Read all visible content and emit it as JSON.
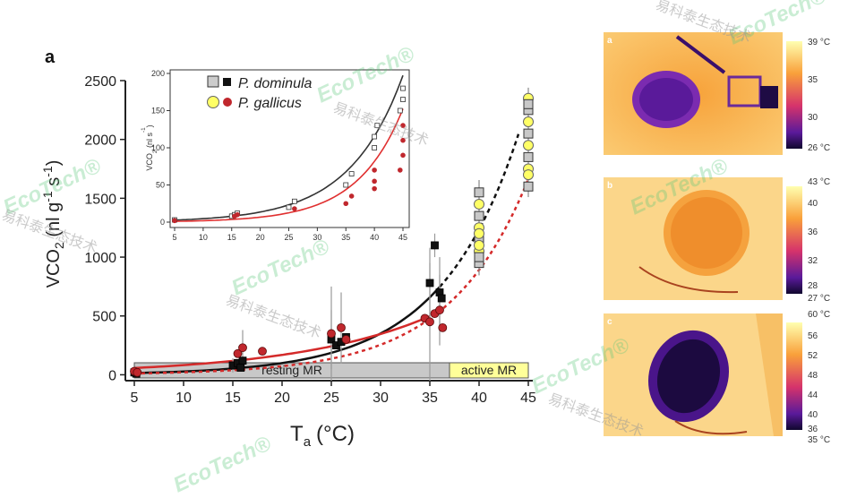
{
  "panel_letter": "a",
  "chart_data": {
    "type": "scatter",
    "xlabel": "T",
    "xlabel_sub": "a",
    "xlabel_unit": "(°C)",
    "ylabel_parts": [
      "VCO",
      "2",
      " (nl g",
      "-1",
      " s",
      "-1",
      ")"
    ],
    "xlim": [
      5,
      45
    ],
    "ylim": [
      -50,
      2500
    ],
    "x_ticks": [
      5,
      10,
      15,
      20,
      25,
      30,
      35,
      40,
      45
    ],
    "y_ticks": [
      0,
      500,
      1000,
      1500,
      2000,
      2500
    ],
    "regions": [
      {
        "label": "resting MR",
        "x": [
          5,
          37
        ],
        "color": "#c8c8c8"
      },
      {
        "label": "active MR",
        "x": [
          37,
          45
        ],
        "color": "#ffff99"
      }
    ],
    "series": [
      {
        "name": "P. dominula",
        "color": "#111111",
        "points": [
          [
            5,
            20
          ],
          [
            5.2,
            10
          ],
          [
            15,
            80
          ],
          [
            15.5,
            100
          ],
          [
            16,
            120
          ],
          [
            15.8,
            60
          ],
          [
            25,
            300
          ],
          [
            25.5,
            250
          ],
          [
            26,
            280
          ],
          [
            26.5,
            320
          ],
          [
            35,
            780
          ],
          [
            35.5,
            1100
          ],
          [
            36,
            700
          ],
          [
            36.2,
            650
          ]
        ],
        "err": [
          [
            15,
            80,
            60
          ],
          [
            25,
            300,
            250
          ],
          [
            35,
            780,
            300
          ],
          [
            35.5,
            1100,
            100
          ],
          [
            36,
            700,
            300
          ]
        ]
      },
      {
        "name": "P. gallicus",
        "color": "#c0272d",
        "points": [
          [
            5,
            30
          ],
          [
            5.3,
            20
          ],
          [
            15.5,
            180
          ],
          [
            16,
            230
          ],
          [
            18,
            200
          ],
          [
            25,
            350
          ],
          [
            26,
            400
          ],
          [
            26.5,
            300
          ],
          [
            34.5,
            480
          ],
          [
            35,
            450
          ],
          [
            35.5,
            520
          ],
          [
            36,
            550
          ],
          [
            36.3,
            400
          ]
        ],
        "err": [
          [
            16,
            230,
            150
          ],
          [
            25,
            350,
            400
          ],
          [
            26,
            400,
            300
          ],
          [
            35,
            450,
            500
          ],
          [
            36,
            550,
            300
          ]
        ]
      }
    ],
    "active_points": [
      {
        "x": 40,
        "values": [
          950,
          1050,
          1150,
          1250,
          1350,
          1450,
          1550,
          1100,
          1000,
          1200
        ],
        "err": 350
      },
      {
        "x": 45,
        "values": [
          1600,
          1750,
          1850,
          1950,
          2050,
          2150,
          2250,
          2350,
          2300,
          1700
        ],
        "err": 300
      }
    ],
    "inset": {
      "xlim": [
        5,
        45
      ],
      "ylim": [
        0,
        200
      ],
      "x_ticks": [
        5,
        10,
        15,
        20,
        25,
        30,
        35,
        40,
        45
      ],
      "y_ticks": [
        0,
        50,
        100,
        150,
        200
      ],
      "ylabel_parts": [
        "VCO",
        "2",
        " (nl s",
        "-1",
        ")"
      ],
      "dominula": [
        [
          5,
          3
        ],
        [
          15,
          8
        ],
        [
          15.5,
          10
        ],
        [
          16,
          12
        ],
        [
          25,
          20
        ],
        [
          26,
          28
        ],
        [
          35,
          50
        ],
        [
          36,
          65
        ],
        [
          40,
          100
        ],
        [
          40,
          115
        ],
        [
          40.5,
          130
        ],
        [
          44.5,
          150
        ],
        [
          45,
          165
        ],
        [
          45,
          180
        ]
      ],
      "gallicus": [
        [
          5,
          2
        ],
        [
          15.5,
          8
        ],
        [
          16,
          10
        ],
        [
          26,
          18
        ],
        [
          35,
          25
        ],
        [
          36,
          35
        ],
        [
          40,
          45
        ],
        [
          40,
          55
        ],
        [
          40,
          70
        ],
        [
          44.5,
          70
        ],
        [
          45,
          90
        ],
        [
          45,
          110
        ],
        [
          45,
          130
        ]
      ]
    }
  },
  "legend": [
    {
      "label": "P. dominula",
      "fill_open": "#cccccc",
      "fill_solid": "#111111",
      "shape": "square"
    },
    {
      "label": "P. gallicus",
      "fill_open": "#ffff66",
      "fill_solid": "#c0272d",
      "shape": "circle"
    }
  ],
  "thermal_panels": [
    {
      "letter": "a",
      "max_label": "39 °C",
      "min_label": "26 °C",
      "ticks": [
        "35",
        "30"
      ]
    },
    {
      "letter": "b",
      "max_label": "43 °C",
      "min_label": "27 °C",
      "ticks": [
        "40",
        "36",
        "32",
        "28"
      ]
    },
    {
      "letter": "c",
      "max_label": "60 °C",
      "min_label": "35 °C",
      "ticks": [
        "56",
        "52",
        "48",
        "44",
        "40",
        "36"
      ]
    }
  ],
  "watermark": {
    "latin": "EcoTech®",
    "chinese": "易科泰生态技术"
  }
}
